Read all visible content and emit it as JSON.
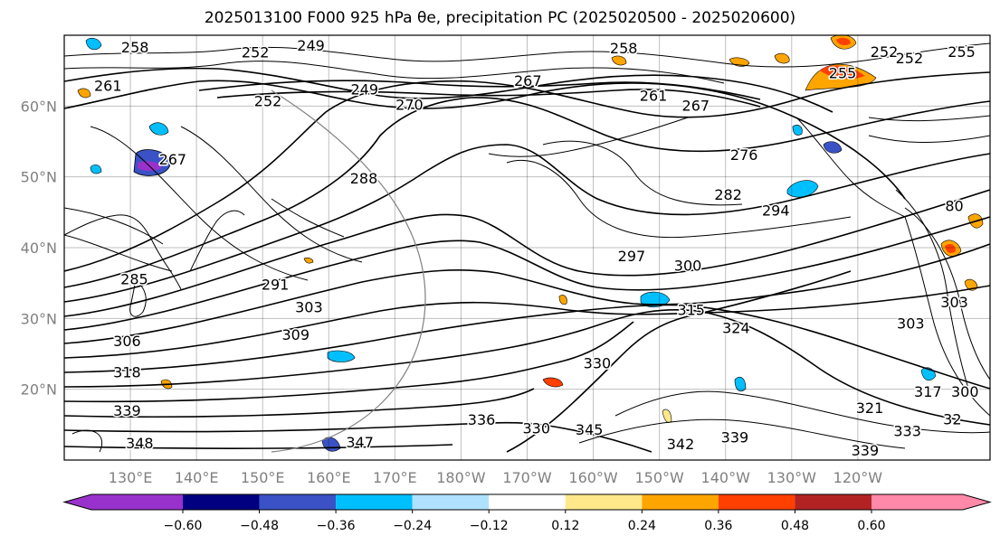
{
  "title": "2025013100 F000 925 hPa θe, precipitation PC (2025020500 - 2025020600)",
  "map": {
    "lon_range": [
      120,
      260
    ],
    "lat_range": [
      10,
      70
    ],
    "lat_ticks": [
      {
        "lat": 20,
        "label": "20°N"
      },
      {
        "lat": 30,
        "label": "30°N"
      },
      {
        "lat": 40,
        "label": "40°N"
      },
      {
        "lat": 50,
        "label": "50°N"
      },
      {
        "lat": 60,
        "label": "60°N"
      }
    ],
    "lon_ticks": [
      {
        "lon": 130,
        "label": "130°E"
      },
      {
        "lon": 140,
        "label": "140°E"
      },
      {
        "lon": 150,
        "label": "150°E"
      },
      {
        "lon": 160,
        "label": "160°E"
      },
      {
        "lon": 170,
        "label": "170°E"
      },
      {
        "lon": 180,
        "label": "180°W"
      },
      {
        "lon": 190,
        "label": "170°W"
      },
      {
        "lon": 200,
        "label": "160°W"
      },
      {
        "lon": 210,
        "label": "150°W"
      },
      {
        "lon": 220,
        "label": "140°W"
      },
      {
        "lon": 230,
        "label": "130°W"
      },
      {
        "lon": 240,
        "label": "120°W"
      }
    ],
    "contour_labels": [
      {
        "text": "258",
        "lon": 130.7,
        "lat": 68.2
      },
      {
        "text": "249",
        "lon": 157.3,
        "lat": 68.5
      },
      {
        "text": "252",
        "lon": 148.9,
        "lat": 67.5
      },
      {
        "text": "261",
        "lon": 126.6,
        "lat": 62.8
      },
      {
        "text": "252",
        "lon": 150.8,
        "lon2": 0,
        "lat": 60.6
      },
      {
        "text": "249",
        "lon": 165.4,
        "lat": 62.3
      },
      {
        "text": "267",
        "lon": 190.1,
        "lat": 63.5
      },
      {
        "text": "270",
        "lon": 172.2,
        "lat": 60.1
      },
      {
        "text": "261",
        "lon": 209.1,
        "lat": 61.4
      },
      {
        "text": "267",
        "lon": 215.5,
        "lat": 60.0
      },
      {
        "text": "276",
        "lon": 222.8,
        "lat": 53.0
      },
      {
        "text": "252",
        "lon": 244.0,
        "lat": 67.6
      },
      {
        "text": "252",
        "lon": 247.8,
        "lat": 66.7
      },
      {
        "text": "255",
        "lon": 255.7,
        "lat": 67.6
      },
      {
        "text": "258",
        "lon": 204.6,
        "lat": 68.1
      },
      {
        "text": "255",
        "lon": 237.7,
        "lat": 64.6
      },
      {
        "text": "267",
        "lon": 136.4,
        "lat": 52.4
      },
      {
        "text": "288",
        "lon": 165.3,
        "lat": 49.7
      },
      {
        "text": "282",
        "lon": 220.4,
        "lat": 47.4
      },
      {
        "text": "294",
        "lon": 227.6,
        "lat": 45.2
      },
      {
        "text": "285",
        "lon": 130.6,
        "lat": 35.5
      },
      {
        "text": "291",
        "lon": 151.9,
        "lat": 34.7
      },
      {
        "text": "297",
        "lon": 205.8,
        "lat": 38.7
      },
      {
        "text": "300",
        "lon": 214.3,
        "lat": 37.4
      },
      {
        "text": "303",
        "lon": 157.0,
        "lat": 31.5
      },
      {
        "text": "309",
        "lon": 155.0,
        "lat": 27.6
      },
      {
        "text": "306",
        "lon": 129.5,
        "lat": 26.7
      },
      {
        "text": "318",
        "lon": 129.5,
        "lat": 22.3
      },
      {
        "text": "315",
        "lon": 214.8,
        "lat": 31.1
      },
      {
        "text": "324",
        "lon": 221.6,
        "lat": 28.6
      },
      {
        "text": "330",
        "lon": 200.6,
        "lat": 23.6
      },
      {
        "text": "303",
        "lon": 248.0,
        "lat": 29.2
      },
      {
        "text": "339",
        "lon": 129.5,
        "lat": 16.9
      },
      {
        "text": "336",
        "lon": 183.1,
        "lat": 15.6
      },
      {
        "text": "330",
        "lon": 191.4,
        "lat": 14.4
      },
      {
        "text": "345",
        "lon": 199.4,
        "lat": 14.2
      },
      {
        "text": "342",
        "lon": 213.2,
        "lat": 12.2
      },
      {
        "text": "339",
        "lon": 221.4,
        "lat": 13.1
      },
      {
        "text": "339",
        "lon": 241.1,
        "lat": 11.3
      },
      {
        "text": "321",
        "lon": 241.8,
        "lat": 17.3
      },
      {
        "text": "333",
        "lon": 247.5,
        "lat": 14.0
      },
      {
        "text": "317",
        "lon": 250.6,
        "lat": 19.6
      },
      {
        "text": "32",
        "lon": 254.3,
        "lat": 15.7
      },
      {
        "text": "300",
        "lon": 256.2,
        "lat": 19.6
      },
      {
        "text": "348",
        "lon": 131.4,
        "lat": 12.3
      },
      {
        "text": "347",
        "lon": 164.7,
        "lat": 12.4
      },
      {
        "text": "303",
        "lon": 254.6,
        "lat": 32.2
      },
      {
        "text": "80",
        "lon": 254.6,
        "lat": 45.8
      }
    ]
  },
  "colorbar": {
    "colors": [
      "#9932CC",
      "#000080",
      "#3a52c6",
      "#00bfff",
      "#b0e2ff",
      "#ffffff",
      "#ffe88a",
      "#ffa500",
      "#ff4000",
      "#b22222",
      "#ff89a8"
    ],
    "ticks": [
      "−0.60",
      "−0.48",
      "−0.36",
      "−0.24",
      "−0.12",
      "0.12",
      "0.24",
      "0.36",
      "0.48",
      "0.60"
    ]
  }
}
